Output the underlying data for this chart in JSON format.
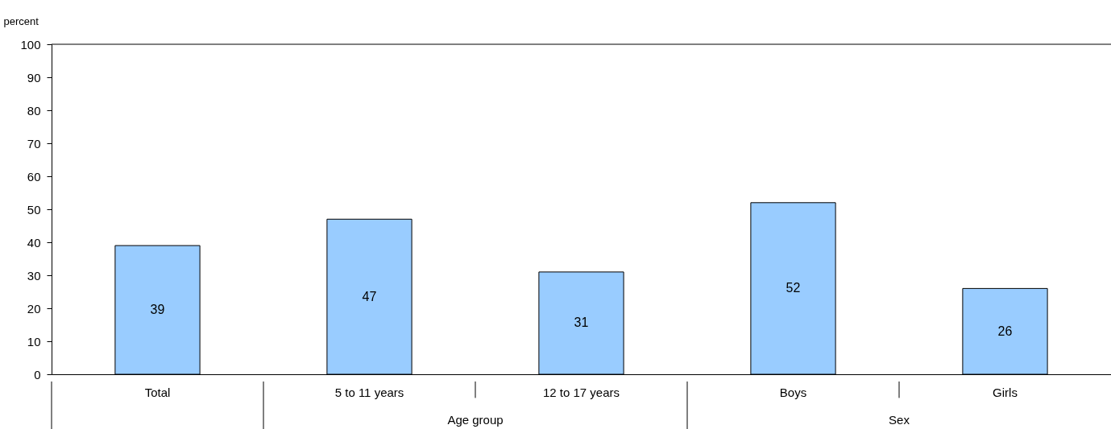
{
  "chart_data": {
    "type": "bar",
    "ylabel": "percent",
    "categories": [
      "Total",
      "5 to 11 years",
      "12 to 17 years",
      "Boys",
      "Girls"
    ],
    "values": [
      39,
      47,
      31,
      52,
      26
    ],
    "color": "#99ccff",
    "ylim": [
      0,
      100
    ],
    "yticks": [
      0,
      10,
      20,
      30,
      40,
      50,
      60,
      70,
      80,
      90,
      100
    ],
    "data_labels": true,
    "annotations": [
      "Age group",
      "Sex"
    ]
  }
}
